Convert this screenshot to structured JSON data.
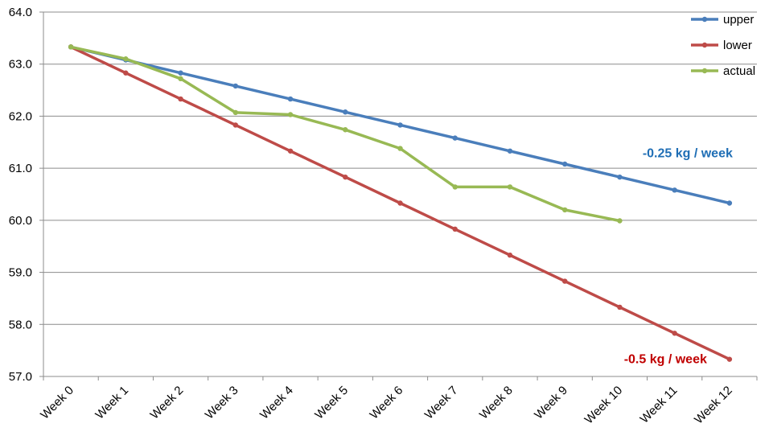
{
  "chart_data": {
    "type": "line",
    "title": "",
    "xlabel": "",
    "ylabel": "",
    "categories": [
      "Week 0",
      "Week 1",
      "Week 2",
      "Week 3",
      "Week 4",
      "Week 5",
      "Week 6",
      "Week 7",
      "Week 8",
      "Week 9",
      "Week 10",
      "Week 11",
      "Week 12"
    ],
    "ylim": [
      57.0,
      64.0
    ],
    "yticks": [
      "57.0",
      "58.0",
      "59.0",
      "60.0",
      "61.0",
      "62.0",
      "63.0",
      "64.0"
    ],
    "grid": true,
    "legend_position": "top-right",
    "series": [
      {
        "name": "upper",
        "color": "#4a7ebb",
        "values": [
          63.33,
          63.08,
          62.83,
          62.58,
          62.33,
          62.08,
          61.83,
          61.58,
          61.33,
          61.08,
          60.83,
          60.58,
          60.33
        ]
      },
      {
        "name": "lower",
        "color": "#be4b48",
        "values": [
          63.33,
          62.83,
          62.33,
          61.83,
          61.33,
          60.83,
          60.33,
          59.83,
          59.33,
          58.83,
          58.33,
          57.83,
          57.33
        ]
      },
      {
        "name": "actual",
        "color": "#98b954",
        "values": [
          63.33,
          63.1,
          62.72,
          62.07,
          62.03,
          61.74,
          61.38,
          60.64,
          60.64,
          60.2,
          59.99,
          null,
          null
        ]
      }
    ],
    "annotations": [
      {
        "text": "-0.25 kg / week",
        "color": "#1f6eb5",
        "series": "upper"
      },
      {
        "text": "-0.5 kg / week",
        "color": "#c00000",
        "series": "lower"
      }
    ]
  }
}
